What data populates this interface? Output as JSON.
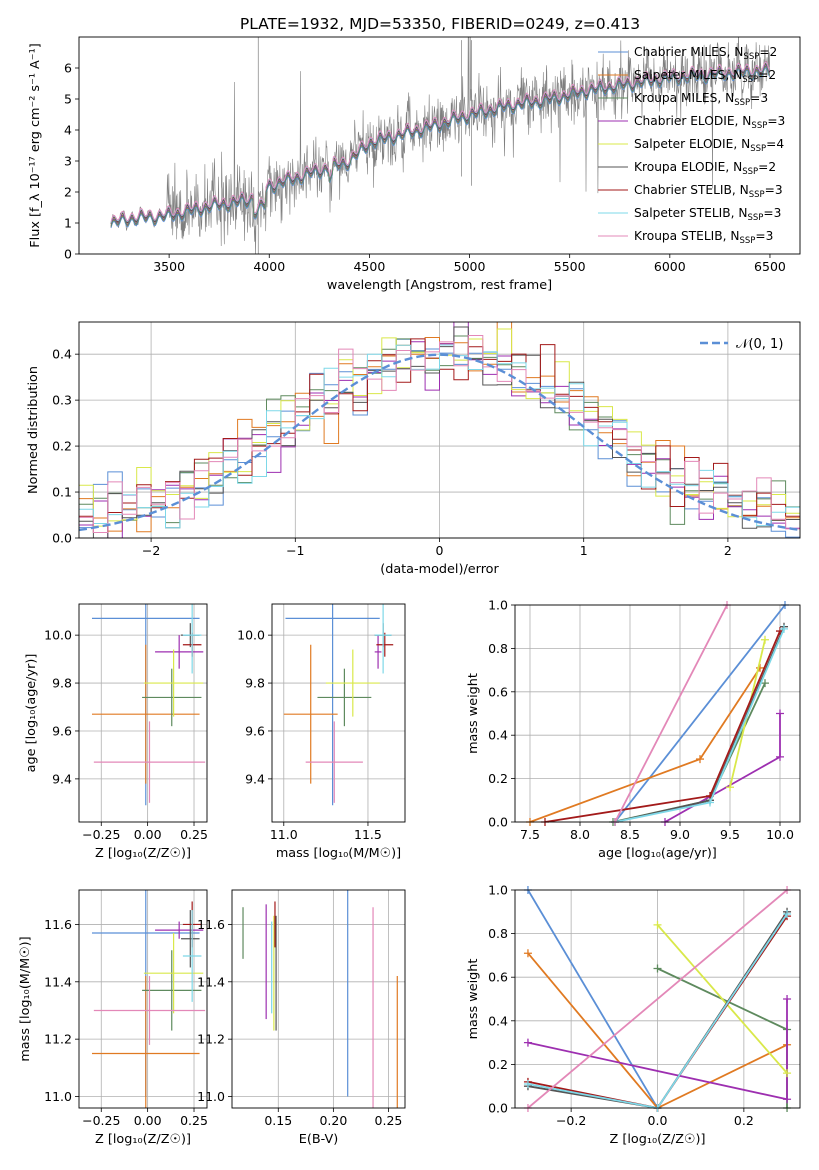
{
  "figure_title": "PLATE=1932, MJD=53350, FIBERID=0249, z=0.413",
  "colors": {
    "spectrum": "#7f7f7f",
    "normal_curve": "#5b8fd6",
    "sp0": "#5b8fd6",
    "sp1": "#e07a22",
    "sp2": "#5e8a5e",
    "sp3": "#9d2fb0",
    "sp4": "#d9e84a",
    "sp5": "#555555",
    "sp6": "#a31a1a",
    "sp7": "#7ed8e8",
    "sp8": "#e388b8"
  },
  "chart_data": [
    {
      "id": "spectrum",
      "type": "line",
      "xlabel": "wavelength [Angstrom, rest frame]",
      "ylabel": "Flux [f_λ 10⁻¹⁷ erg cm⁻² s⁻¹ A⁻¹]",
      "xlim": [
        3050,
        6650
      ],
      "ylim": [
        0,
        7
      ],
      "xticks": [
        3500,
        4000,
        4500,
        5000,
        5500,
        6000,
        6500
      ],
      "yticks": [
        0,
        1,
        2,
        3,
        4,
        5,
        6
      ],
      "data_range": [
        3210,
        6500
      ],
      "continuum_knots": [
        [
          3210,
          1.0
        ],
        [
          3300,
          1.15
        ],
        [
          3500,
          1.25
        ],
        [
          3700,
          1.55
        ],
        [
          3900,
          1.75
        ],
        [
          4000,
          2.2
        ],
        [
          4200,
          2.6
        ],
        [
          4400,
          3.0
        ],
        [
          4500,
          3.6
        ],
        [
          4800,
          4.1
        ],
        [
          5000,
          4.5
        ],
        [
          5200,
          4.8
        ],
        [
          5400,
          5.0
        ],
        [
          5600,
          5.3
        ],
        [
          5800,
          5.5
        ],
        [
          6000,
          5.7
        ],
        [
          6200,
          5.8
        ],
        [
          6400,
          5.9
        ],
        [
          6500,
          5.9
        ]
      ],
      "legend": [
        {
          "label": "Chabrier MILES, N",
          "sub": "SSP",
          "tail": "=2"
        },
        {
          "label": "Salpeter MILES, N",
          "sub": "SSP",
          "tail": "=2"
        },
        {
          "label": "Kroupa MILES, N",
          "sub": "SSP",
          "tail": "=3"
        },
        {
          "label": "Chabrier ELODIE, N",
          "sub": "SSP",
          "tail": "=3"
        },
        {
          "label": "Salpeter ELODIE, N",
          "sub": "SSP",
          "tail": "=4"
        },
        {
          "label": "Kroupa ELODIE, N",
          "sub": "SSP",
          "tail": "=2"
        },
        {
          "label": "Chabrier STELIB, N",
          "sub": "SSP",
          "tail": "=3"
        },
        {
          "label": "Salpeter STELIB, N",
          "sub": "SSP",
          "tail": "=3"
        },
        {
          "label": "Kroupa STELIB, N",
          "sub": "SSP",
          "tail": "=3"
        }
      ]
    },
    {
      "id": "residuals",
      "type": "histogram",
      "xlabel": "(data-model)/error",
      "ylabel": "Normed distribution",
      "xlim": [
        -2.5,
        2.5
      ],
      "ylim": [
        0,
        0.47
      ],
      "xticks": [
        -2,
        -1,
        0,
        1,
        2
      ],
      "yticks": [
        0.0,
        0.1,
        0.2,
        0.3,
        0.4
      ],
      "bin_edges_from": -2.5,
      "bin_width": 0.1,
      "n_bins": 50,
      "legend_label": "𝒩(0, 1)"
    },
    {
      "id": "age_vs_Z",
      "type": "errorbar",
      "xlabel": "Z [log₁₀(Z/Z☉)]",
      "ylabel": "age  [log₁₀(age/yr)]",
      "xlim": [
        -0.37,
        0.32
      ],
      "ylim": [
        9.22,
        10.13
      ],
      "xticks": [
        -0.25,
        0.0,
        0.25
      ],
      "yticks": [
        9.4,
        9.6,
        9.8,
        10.0
      ],
      "points": [
        {
          "x": -0.01,
          "xerr": 0.29,
          "y": 10.07,
          "yerr": 0.78
        },
        {
          "x": -0.01,
          "xerr": 0.29,
          "y": 9.67,
          "yerr": 0.29
        },
        {
          "x": 0.13,
          "xerr": 0.16,
          "y": 9.74,
          "yerr": 0.12
        },
        {
          "x": 0.17,
          "xerr": 0.13,
          "y": 9.93,
          "yerr": 0.07
        },
        {
          "x": 0.14,
          "xerr": 0.16,
          "y": 9.8,
          "yerr": 0.14
        },
        {
          "x": 0.23,
          "xerr": 0.05,
          "y": 10.0,
          "yerr": 0.05
        },
        {
          "x": 0.24,
          "xerr": 0.05,
          "y": 9.96,
          "yerr": 0.05
        },
        {
          "x": 0.24,
          "xerr": 0.05,
          "y": 10.0,
          "yerr": 0.16
        },
        {
          "x": 0.01,
          "xerr": 0.3,
          "y": 9.47,
          "yerr": 0.17
        }
      ]
    },
    {
      "id": "age_vs_mass",
      "type": "errorbar",
      "xlabel": "mass [log₁₀(M/M☉)]",
      "ylabel": "",
      "xlim": [
        10.93,
        11.72
      ],
      "ylim": [
        9.22,
        10.13
      ],
      "xticks": [
        11.0,
        11.5
      ],
      "yticks": [
        9.4,
        9.6,
        9.8,
        10.0
      ],
      "points": [
        {
          "x": 11.29,
          "xerr": 0.28,
          "y": 10.07,
          "yerr": 0.78
        },
        {
          "x": 11.16,
          "xerr": 0.16,
          "y": 9.67,
          "yerr": 0.29
        },
        {
          "x": 11.36,
          "xerr": 0.16,
          "y": 9.74,
          "yerr": 0.12
        },
        {
          "x": 11.56,
          "xerr": 0.02,
          "y": 9.93,
          "yerr": 0.07
        },
        {
          "x": 11.41,
          "xerr": 0.16,
          "y": 9.8,
          "yerr": 0.14
        },
        {
          "x": 11.59,
          "xerr": 0.05,
          "y": 10.0,
          "yerr": 0.05
        },
        {
          "x": 11.6,
          "xerr": 0.05,
          "y": 9.96,
          "yerr": 0.05
        },
        {
          "x": 11.59,
          "xerr": 0.05,
          "y": 10.0,
          "yerr": 0.16
        },
        {
          "x": 11.3,
          "xerr": 0.17,
          "y": 9.47,
          "yerr": 0.17
        }
      ]
    },
    {
      "id": "mass_weight_vs_age",
      "type": "line",
      "xlabel": "age  [log₁₀(age/yr)]",
      "ylabel": "mass weight",
      "xlim": [
        7.35,
        10.2
      ],
      "ylim": [
        0,
        1.0
      ],
      "xticks": [
        7.5,
        8.0,
        8.5,
        9.0,
        9.5,
        10.0
      ],
      "yticks": [
        0.0,
        0.2,
        0.4,
        0.6,
        0.8,
        1.0
      ],
      "series": [
        {
          "x": [
            8.35,
            10.05
          ],
          "y": [
            0.0,
            1.0
          ]
        },
        {
          "x": [
            7.5,
            9.2,
            9.8
          ],
          "y": [
            0.0,
            0.29,
            0.71
          ]
        },
        {
          "x": [
            8.33,
            9.3,
            9.85
          ],
          "y": [
            0.0,
            0.1,
            0.64
          ]
        },
        {
          "x": [
            8.85,
            10.0,
            10.0
          ],
          "y": [
            0.0,
            0.3,
            0.5
          ]
        },
        {
          "x": [
            9.5,
            9.85
          ],
          "y": [
            0.16,
            0.84
          ]
        },
        {
          "x": [
            8.35,
            9.3,
            10.04
          ],
          "y": [
            0.0,
            0.1,
            0.9
          ]
        },
        {
          "x": [
            7.65,
            9.3,
            10.0
          ],
          "y": [
            0.0,
            0.12,
            0.88
          ]
        },
        {
          "x": [
            8.35,
            9.3,
            10.04
          ],
          "y": [
            0.0,
            0.09,
            0.89
          ]
        },
        {
          "x": [
            8.35,
            9.47
          ],
          "y": [
            0.0,
            1.0
          ]
        }
      ]
    },
    {
      "id": "mass_vs_Z",
      "type": "errorbar",
      "xlabel": "Z [log₁₀(Z/Z☉)]",
      "ylabel": "mass [log₁₀(M/M☉)]",
      "xlim": [
        -0.37,
        0.32
      ],
      "ylim": [
        10.96,
        11.72
      ],
      "xticks": [
        -0.25,
        0.0,
        0.25
      ],
      "yticks": [
        11.0,
        11.2,
        11.4,
        11.6
      ],
      "points": [
        {
          "x": -0.01,
          "xerr": 0.29,
          "y": 11.57,
          "yerr": 0.57
        },
        {
          "x": -0.01,
          "xerr": 0.29,
          "y": 11.15,
          "yerr": 0.27
        },
        {
          "x": 0.13,
          "xerr": 0.16,
          "y": 11.37,
          "yerr": 0.14
        },
        {
          "x": 0.17,
          "xerr": 0.13,
          "y": 11.58,
          "yerr": 0.03
        },
        {
          "x": 0.14,
          "xerr": 0.16,
          "y": 11.43,
          "yerr": 0.14
        },
        {
          "x": 0.23,
          "xerr": 0.05,
          "y": 11.55,
          "yerr": 0.1
        },
        {
          "x": 0.24,
          "xerr": 0.05,
          "y": 11.6,
          "yerr": 0.08
        },
        {
          "x": 0.24,
          "xerr": 0.05,
          "y": 11.49,
          "yerr": 0.16
        },
        {
          "x": 0.01,
          "xerr": 0.3,
          "y": 11.3,
          "yerr": 0.12
        }
      ]
    },
    {
      "id": "mass_vs_ebv",
      "type": "errorbar",
      "xlabel": "E(B-V)",
      "ylabel": "",
      "xlim": [
        0.108,
        0.265
      ],
      "ylim": [
        10.96,
        11.72
      ],
      "xticks": [
        0.15,
        0.2,
        0.25
      ],
      "yticks": [
        11.0,
        11.2,
        11.4,
        11.6
      ],
      "points": [
        {
          "x": 0.213,
          "xerr": 0,
          "y": 11.57,
          "yerr": 0.57
        },
        {
          "x": 0.258,
          "xerr": 0,
          "y": 11.15,
          "yerr": 0.27
        },
        {
          "x": 0.118,
          "xerr": 0,
          "y": 11.57,
          "yerr": 0.09
        },
        {
          "x": 0.139,
          "xerr": 0,
          "y": 11.47,
          "yerr": 0.2
        },
        {
          "x": 0.146,
          "xerr": 0,
          "y": 11.43,
          "yerr": 0.2
        },
        {
          "x": 0.148,
          "xerr": 0,
          "y": 11.43,
          "yerr": 0.2
        },
        {
          "x": 0.147,
          "xerr": 0,
          "y": 11.6,
          "yerr": 0.08
        },
        {
          "x": 0.144,
          "xerr": 0,
          "y": 11.45,
          "yerr": 0.16
        },
        {
          "x": 0.236,
          "xerr": 0,
          "y": 11.3,
          "yerr": 0.36
        }
      ]
    },
    {
      "id": "mass_weight_vs_Z",
      "type": "line",
      "xlabel": "Z [log₁₀(Z/Z☉)]",
      "ylabel": "mass weight",
      "xlim": [
        -0.33,
        0.33
      ],
      "ylim": [
        0,
        1.0
      ],
      "xticks": [
        -0.2,
        0.0,
        0.2
      ],
      "yticks": [
        0.0,
        0.2,
        0.4,
        0.6,
        0.8,
        1.0
      ],
      "series": [
        {
          "x": [
            -0.3,
            0.0
          ],
          "y": [
            1.0,
            0.0
          ]
        },
        {
          "x": [
            -0.3,
            0.0,
            0.3
          ],
          "y": [
            0.71,
            0.0,
            0.29
          ]
        },
        {
          "x": [
            0.0,
            0.3,
            0.3
          ],
          "y": [
            0.64,
            0.36,
            0.0
          ]
        },
        {
          "x": [
            -0.3,
            0.3,
            0.3
          ],
          "y": [
            0.3,
            0.04,
            0.5
          ]
        },
        {
          "x": [
            0.0,
            0.3
          ],
          "y": [
            0.84,
            0.16
          ]
        },
        {
          "x": [
            -0.3,
            0.0,
            0.3
          ],
          "y": [
            0.1,
            0.0,
            0.9
          ]
        },
        {
          "x": [
            -0.3,
            0.0,
            0.3
          ],
          "y": [
            0.12,
            0.0,
            0.88
          ]
        },
        {
          "x": [
            -0.3,
            0.0,
            0.3
          ],
          "y": [
            0.11,
            0.0,
            0.89
          ]
        },
        {
          "x": [
            -0.3,
            0.3
          ],
          "y": [
            0.0,
            1.0
          ]
        }
      ]
    }
  ]
}
